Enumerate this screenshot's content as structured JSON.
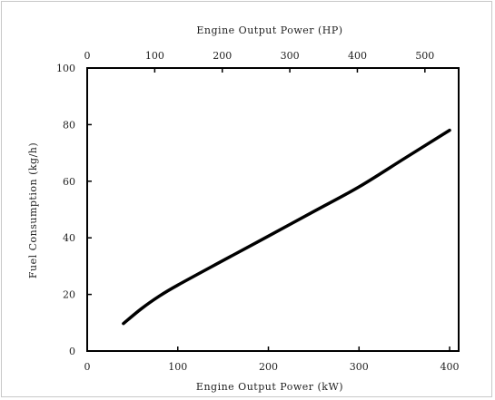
{
  "chart_data": {
    "type": "line",
    "xlabel": "Engine Output Power (kW)",
    "x2label": "Engine Output Power (HP)",
    "ylabel": "Fuel Consumption (kg/h)",
    "xlim": [
      0,
      410
    ],
    "x2lim": [
      0,
      550
    ],
    "ylim": [
      0,
      100
    ],
    "xticks": [
      0,
      100,
      200,
      300,
      400
    ],
    "xtick_labels": [
      "0",
      "100",
      "200",
      "300",
      "400"
    ],
    "x2ticks": [
      0,
      100,
      200,
      300,
      400,
      500
    ],
    "x2tick_labels": [
      "0",
      "100",
      "200",
      "300",
      "400",
      "500"
    ],
    "yticks": [
      0,
      20,
      40,
      60,
      80,
      100
    ],
    "ytick_labels": [
      "0",
      "20",
      "40",
      "60",
      "80",
      "100"
    ],
    "grid": false,
    "legend": "none",
    "series": [
      {
        "x": [
          40,
          60,
          80,
          100,
          150,
          200,
          250,
          300,
          350,
          400
        ],
        "y": [
          9.7,
          15.0,
          19.5,
          23.3,
          32.0,
          40.6,
          49.3,
          58.0,
          68.0,
          78.0
        ],
        "color": "#000000"
      }
    ]
  }
}
